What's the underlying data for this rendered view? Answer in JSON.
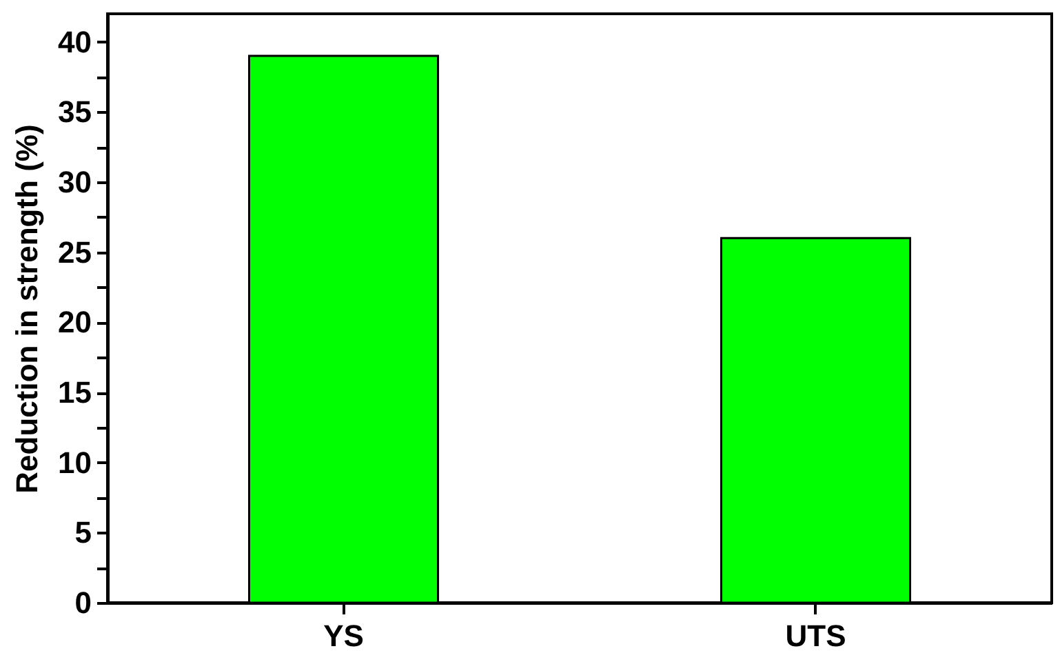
{
  "chart_data": {
    "type": "bar",
    "categories": [
      "YS",
      "UTS"
    ],
    "values": [
      39,
      26
    ],
    "color": "#00ff00",
    "ylabel": "Reduction in strength (%)",
    "ylim": [
      0,
      42
    ],
    "yticks": [
      0,
      {
        "value": 2.5,
        "label": null
      },
      5,
      {
        "value": 7.5,
        "label": null
      },
      10,
      {
        "value": 12.5,
        "label": null
      },
      15,
      {
        "value": 17.5,
        "label": null
      },
      20,
      {
        "value": 22.5,
        "label": null
      },
      25,
      {
        "value": 27.5,
        "label": null
      },
      30,
      {
        "value": 32.5,
        "label": null
      },
      35,
      {
        "value": 37.5,
        "label": null
      },
      40
    ],
    "grid": false
  }
}
